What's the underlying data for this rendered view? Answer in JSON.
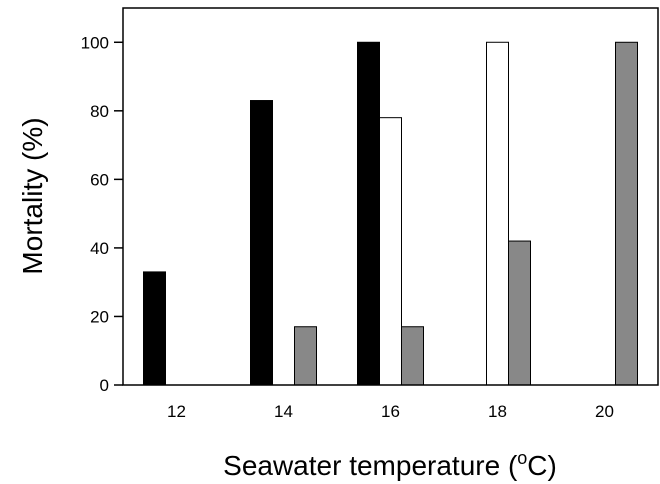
{
  "chart_data": {
    "type": "bar",
    "xlabel": "Seawater temperature (",
    "xlabel_superscript": "o",
    "xlabel_suffix": "C)",
    "ylabel": "Mortality (%)",
    "categories": [
      "12",
      "14",
      "16",
      "18",
      "20"
    ],
    "ylim": [
      0,
      110
    ],
    "yticks": [
      0,
      20,
      40,
      60,
      80,
      100
    ],
    "series": [
      {
        "color": "#000000",
        "values": [
          33,
          83,
          100,
          null,
          null
        ]
      },
      {
        "color": "#ffffff",
        "values": [
          null,
          null,
          78,
          100,
          null
        ]
      },
      {
        "color": "#888888",
        "values": [
          null,
          17,
          17,
          42,
          100
        ]
      }
    ],
    "grid": false,
    "legend": "none"
  }
}
